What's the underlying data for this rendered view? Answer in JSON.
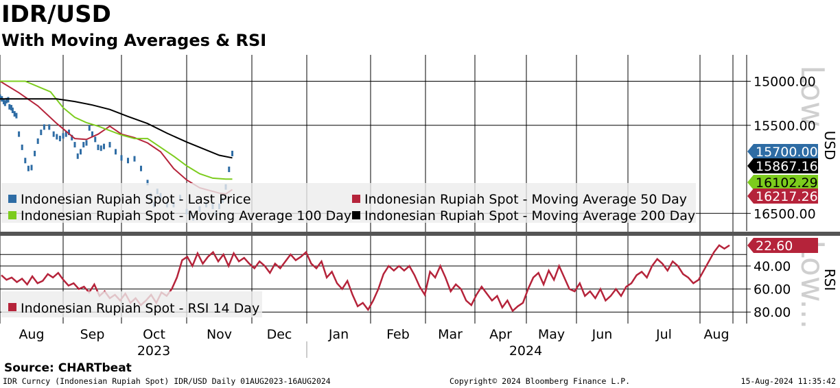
{
  "title": "IDR/USD",
  "subtitle": "With Moving Averages & RSI",
  "source": "Source: CHARTbeat",
  "footer": {
    "left": "IDR Curncy (Indonesian Rupiah Spot) IDR/USD  Daily 01AUG2023-16AUG2024",
    "center": "Copyright© 2024 Bloomberg Finance L.P.",
    "right": "15-Aug-2024 11:35:42"
  },
  "watermark": {
    "top": "Low",
    "bottom": "Low..."
  },
  "colors": {
    "last": "#2e6ca4",
    "ma50": "#b5233a",
    "ma100": "#7ccc1d",
    "ma200": "#000000",
    "rsi": "#b5233a"
  },
  "chart_data": [
    {
      "type": "line",
      "yaxis_label": "USD",
      "ylim": [
        16700,
        14700
      ],
      "yticks": [
        "15000.00",
        "15500.00",
        "16500.00"
      ],
      "ytick_values": [
        15000,
        15500,
        16500
      ],
      "x_months": [
        "Aug",
        "Sep",
        "Oct",
        "Nov",
        "Dec",
        "Jan",
        "Feb",
        "Mar",
        "Apr",
        "May",
        "Jun",
        "Jul",
        "Aug"
      ],
      "x_years": [
        "2023",
        "2024"
      ],
      "grid": true,
      "legend_position": "bottom-left",
      "series": [
        {
          "name": "Indonesian Rupiah Spot - Last Price",
          "marker": "bar",
          "current": "15700.00",
          "points": [
            [
              0,
              15180
            ],
            [
              0.03,
              15200
            ],
            [
              0.06,
              15230
            ],
            [
              0.08,
              15250
            ],
            [
              0.1,
              15220
            ],
            [
              0.13,
              15210
            ],
            [
              0.15,
              15290
            ],
            [
              0.18,
              15300
            ],
            [
              0.2,
              15330
            ],
            [
              0.23,
              15370
            ],
            [
              0.26,
              15390
            ],
            [
              0.3,
              15600
            ],
            [
              0.35,
              15750
            ],
            [
              0.4,
              15900
            ],
            [
              0.45,
              15990
            ],
            [
              0.5,
              15980
            ],
            [
              0.55,
              15820
            ],
            [
              0.6,
              15680
            ],
            [
              0.65,
              15580
            ],
            [
              0.7,
              15520
            ],
            [
              0.78,
              15520
            ],
            [
              0.85,
              15600
            ],
            [
              0.9,
              15630
            ],
            [
              0.95,
              15650
            ],
            [
              1,
              15620
            ],
            [
              1.05,
              15600
            ],
            [
              1.1,
              15580
            ],
            [
              1.15,
              15640
            ],
            [
              1.2,
              15720
            ],
            [
              1.25,
              15850
            ],
            [
              1.3,
              15800
            ],
            [
              1.35,
              15720
            ],
            [
              1.4,
              15700
            ],
            [
              1.45,
              15530
            ],
            [
              1.5,
              15600
            ],
            [
              1.55,
              15660
            ],
            [
              1.6,
              15750
            ],
            [
              1.65,
              15760
            ],
            [
              1.7,
              15740
            ],
            [
              1.8,
              15720
            ],
            [
              1.9,
              15800
            ],
            [
              2,
              15870
            ],
            [
              2.1,
              15900
            ],
            [
              2.2,
              15880
            ],
            [
              2.3,
              15990
            ],
            [
              2.4,
              16150
            ],
            [
              2.45,
              16300
            ],
            [
              2.5,
              16400
            ],
            [
              2.55,
              16250
            ],
            [
              2.6,
              16300
            ],
            [
              2.7,
              16400
            ],
            [
              2.8,
              16400
            ],
            [
              2.9,
              16320
            ],
            [
              3,
              16480
            ],
            [
              3.05,
              16520
            ],
            [
              3.1,
              16550
            ],
            [
              3.2,
              16450
            ],
            [
              3.3,
              16400
            ],
            [
              3.4,
              16420
            ],
            [
              3.45,
              16500
            ],
            [
              3.5,
              16420
            ],
            [
              3.55,
              16350
            ],
            [
              3.6,
              16200
            ],
            [
              3.65,
              16000
            ],
            [
              3.7,
              15820
            ]
          ]
        },
        {
          "name": "Indonesian Rupiah Spot - Moving Average 50 Day",
          "current": "16217.26",
          "points": [
            [
              0,
              15000
            ],
            [
              0.3,
              15130
            ],
            [
              0.6,
              15280
            ],
            [
              0.9,
              15480
            ],
            [
              1.2,
              15650
            ],
            [
              1.4,
              15660
            ],
            [
              1.6,
              15600
            ],
            [
              1.8,
              15510
            ],
            [
              2,
              15600
            ],
            [
              2.2,
              15640
            ],
            [
              2.4,
              15700
            ],
            [
              2.6,
              15800
            ],
            [
              2.8,
              15990
            ],
            [
              3,
              16120
            ],
            [
              3.2,
              16210
            ],
            [
              3.35,
              16240
            ],
            [
              3.5,
              16270
            ],
            [
              3.6,
              16280
            ],
            [
              3.7,
              16230
            ]
          ]
        },
        {
          "name": "Indonesian Rupiah Spot - Moving Average 100 Day",
          "current": "16102.29",
          "points": [
            [
              0,
              15000
            ],
            [
              0.4,
              15000
            ],
            [
              0.8,
              15120
            ],
            [
              1,
              15300
            ],
            [
              1.2,
              15410
            ],
            [
              1.4,
              15470
            ],
            [
              1.6,
              15510
            ],
            [
              1.8,
              15560
            ],
            [
              2,
              15610
            ],
            [
              2.2,
              15650
            ],
            [
              2.4,
              15650
            ],
            [
              2.6,
              15750
            ],
            [
              2.8,
              15850
            ],
            [
              3,
              15960
            ],
            [
              3.2,
              16050
            ],
            [
              3.4,
              16100
            ],
            [
              3.6,
              16110
            ],
            [
              3.7,
              16110
            ]
          ]
        },
        {
          "name": "Indonesian Rupiah Spot - Moving Average 200 Day",
          "current": "15867.16",
          "points": [
            [
              0,
              15200
            ],
            [
              0.5,
              15200
            ],
            [
              0.9,
              15200
            ],
            [
              1.2,
              15230
            ],
            [
              1.5,
              15270
            ],
            [
              1.8,
              15320
            ],
            [
              2.1,
              15400
            ],
            [
              2.4,
              15480
            ],
            [
              2.7,
              15590
            ],
            [
              3,
              15690
            ],
            [
              3.3,
              15780
            ],
            [
              3.5,
              15840
            ],
            [
              3.7,
              15870
            ]
          ]
        }
      ],
      "legend": [
        "Indonesian Rupiah Spot - Last Price",
        "Indonesian Rupiah Spot - Moving Average 50 Day",
        "Indonesian Rupiah Spot - Moving Average 100 Day",
        "Indonesian Rupiah Spot - Moving Average 200 Day"
      ]
    },
    {
      "type": "line",
      "yaxis_label": "RSI",
      "ylim": [
        90,
        15
      ],
      "yticks": [
        "40.00",
        "60.00",
        "80.00"
      ],
      "ytick_values": [
        40,
        60,
        80
      ],
      "series": [
        {
          "name": "Indonesian Rupiah Spot - RSI 14 Day",
          "current": "22.60",
          "values": [
            48,
            52,
            50,
            54,
            51,
            56,
            49,
            55,
            53,
            47,
            50,
            46,
            52,
            57,
            55,
            60,
            58,
            63,
            56,
            66,
            62,
            68,
            65,
            70,
            64,
            72,
            68,
            74,
            70,
            65,
            72,
            63,
            66,
            60,
            50,
            35,
            32,
            40,
            29,
            38,
            32,
            28,
            36,
            30,
            40,
            29,
            36,
            33,
            38,
            42,
            36,
            40,
            46,
            38,
            42,
            36,
            30,
            35,
            32,
            28,
            38,
            42,
            36,
            50,
            45,
            55,
            60,
            53,
            65,
            75,
            72,
            78,
            70,
            60,
            47,
            40,
            44,
            40,
            44,
            40,
            48,
            58,
            65,
            45,
            50,
            40,
            50,
            62,
            56,
            60,
            70,
            74,
            65,
            58,
            64,
            70,
            66,
            76,
            70,
            79,
            75,
            72,
            60,
            50,
            46,
            56,
            44,
            52,
            40,
            50,
            60,
            62,
            55,
            66,
            62,
            68,
            60,
            70,
            66,
            60,
            66,
            58,
            55,
            48,
            45,
            50,
            40,
            34,
            38,
            44,
            36,
            40,
            47,
            50,
            55,
            52,
            44,
            36,
            28,
            22,
            25,
            22
          ]
        }
      ]
    }
  ]
}
